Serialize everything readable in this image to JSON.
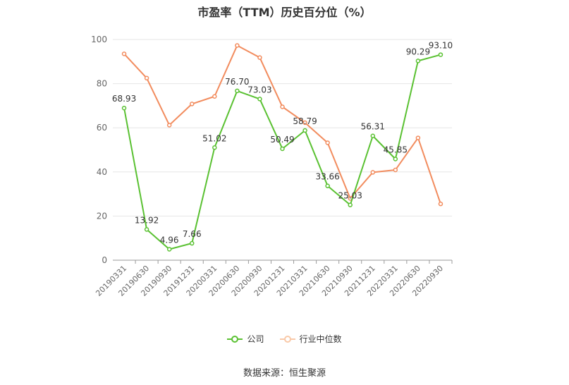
{
  "chart_data": {
    "type": "line",
    "title": "市盈率（TTM）历史百分位（%）",
    "categories": [
      "20190331",
      "20190630",
      "20190930",
      "20191231",
      "20200331",
      "20200630",
      "20200930",
      "20201231",
      "20210331",
      "20210630",
      "20210930",
      "20211231",
      "20220331",
      "20220630",
      "20220930"
    ],
    "series": [
      {
        "name": "公司",
        "color": "#5ac132",
        "values": [
          68.93,
          13.92,
          4.96,
          7.66,
          51.02,
          76.7,
          73.03,
          50.49,
          58.79,
          33.66,
          25.03,
          56.31,
          45.85,
          90.29,
          93.1
        ],
        "labels": [
          "68.93",
          "13.92",
          "4.96",
          "7.66",
          "51.02",
          "76.70",
          "73.03",
          "50.49",
          "58.79",
          "33.66",
          "25.03",
          "56.31",
          "45.85",
          "90.29",
          "93.10"
        ]
      },
      {
        "name": "行业中位数",
        "color": "#f28c5e",
        "values": [
          93.5,
          82.5,
          61.2,
          70.8,
          74.2,
          97.3,
          91.8,
          69.5,
          62.3,
          53.2,
          28.0,
          39.8,
          40.9,
          55.4,
          25.5
        ]
      }
    ],
    "yticks": [
      "0",
      "20",
      "40",
      "60",
      "80",
      "100"
    ],
    "ylim": [
      0,
      100
    ],
    "grid": true,
    "legend_position": "bottom"
  },
  "source": "数据来源：恒生聚源"
}
